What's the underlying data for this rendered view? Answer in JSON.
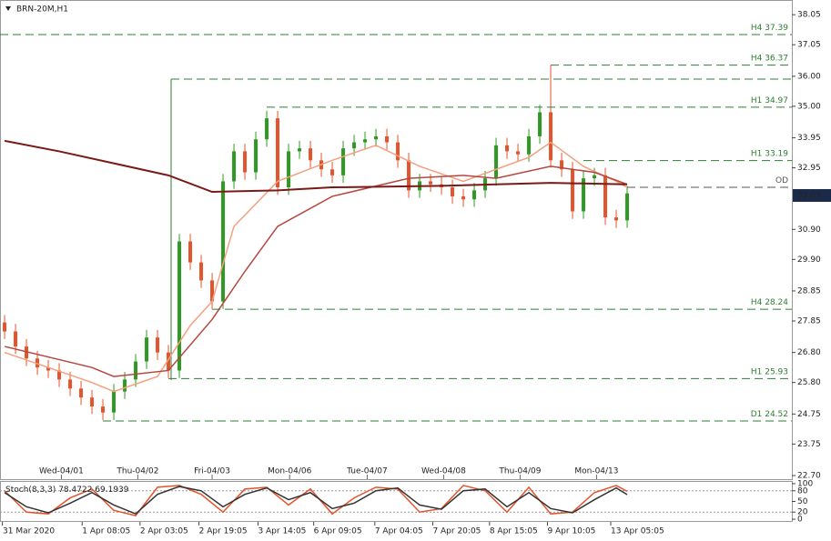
{
  "chart_data": [
    {
      "type": "candlestick",
      "title": "BRN-20M,H1",
      "open": [
        27.8,
        27.5,
        27.0,
        26.6,
        26.3,
        26.2,
        25.9,
        25.6,
        25.3,
        25.0,
        24.8,
        25.5,
        25.9,
        26.5,
        27.3,
        26.8,
        26.2,
        30.5,
        29.8,
        29.2,
        28.5,
        32.5,
        33.5,
        32.8,
        33.9,
        34.6,
        32.3,
        33.5,
        33.6,
        33.2,
        32.9,
        32.7,
        33.6,
        33.8,
        33.9,
        34.0,
        33.8,
        33.2,
        32.2,
        32.5,
        32.4,
        32.3,
        32.0,
        31.9,
        32.2,
        32.6,
        33.7,
        33.5,
        33.4,
        34.0,
        34.8,
        33.2,
        32.9,
        31.5,
        32.6,
        32.7,
        31.3,
        31.2
      ],
      "high": [
        28.05,
        27.75,
        27.25,
        26.85,
        26.55,
        26.45,
        26.15,
        25.85,
        25.55,
        25.25,
        25.75,
        26.15,
        26.75,
        27.55,
        27.55,
        27.05,
        30.75,
        30.75,
        30.05,
        29.45,
        32.75,
        33.75,
        33.75,
        34.15,
        34.85,
        34.85,
        33.75,
        33.85,
        33.85,
        33.45,
        33.15,
        33.85,
        34.05,
        34.15,
        34.25,
        34.25,
        34.05,
        33.45,
        32.75,
        32.75,
        32.65,
        32.55,
        32.25,
        32.45,
        32.85,
        33.95,
        33.95,
        33.75,
        34.25,
        35.05,
        36.37,
        33.45,
        33.15,
        32.85,
        32.95,
        32.95,
        31.55,
        32.35
      ],
      "low": [
        27.25,
        26.75,
        26.35,
        26.05,
        25.95,
        25.65,
        25.35,
        25.05,
        24.75,
        24.55,
        24.55,
        25.25,
        25.65,
        26.25,
        26.55,
        25.95,
        25.95,
        29.55,
        28.95,
        28.25,
        28.25,
        32.25,
        32.55,
        32.55,
        33.65,
        32.05,
        32.05,
        33.25,
        32.95,
        32.65,
        32.45,
        32.45,
        33.35,
        33.55,
        33.65,
        33.55,
        32.95,
        31.95,
        31.95,
        32.15,
        32.05,
        31.75,
        31.65,
        31.65,
        31.95,
        32.35,
        33.25,
        33.15,
        33.15,
        33.75,
        32.95,
        32.65,
        31.25,
        31.25,
        32.35,
        31.05,
        30.95,
        30.95
      ],
      "close": [
        27.5,
        27.0,
        26.6,
        26.3,
        26.2,
        25.9,
        25.6,
        25.3,
        25.0,
        24.8,
        25.5,
        25.9,
        26.5,
        27.3,
        26.8,
        26.2,
        30.5,
        29.8,
        29.2,
        28.5,
        32.5,
        33.5,
        32.8,
        33.9,
        34.6,
        32.3,
        33.5,
        33.6,
        33.2,
        32.9,
        32.7,
        33.6,
        33.8,
        33.9,
        34.0,
        33.8,
        33.2,
        32.2,
        32.5,
        32.4,
        32.3,
        32.0,
        31.9,
        32.2,
        32.6,
        33.7,
        33.5,
        33.4,
        34.0,
        34.8,
        33.2,
        32.9,
        31.5,
        32.6,
        32.7,
        31.3,
        31.2,
        32.1
      ],
      "up_color": "#2f9a23",
      "down_color": "#e2542c",
      "series": [
        {
          "color": "#f4a07f",
          "x": [
            0,
            8,
            10,
            14,
            17,
            19,
            21,
            25,
            30,
            34,
            38,
            42,
            45,
            48,
            50,
            53,
            56,
            57
          ],
          "values": [
            26.8,
            25.8,
            25.5,
            26.0,
            27.7,
            28.5,
            31.0,
            32.5,
            33.2,
            33.7,
            33.0,
            32.5,
            32.9,
            33.3,
            33.8,
            33.0,
            32.5,
            32.3
          ]
        },
        {
          "color": "#b5473f",
          "x": [
            0,
            8,
            10,
            15,
            19,
            22,
            25,
            30,
            37,
            42,
            45,
            50,
            54,
            57
          ],
          "values": [
            27.0,
            26.3,
            26.0,
            26.2,
            27.9,
            29.5,
            31.0,
            32.0,
            32.6,
            32.7,
            32.6,
            33.0,
            32.8,
            32.4
          ]
        },
        {
          "color": "#7a1a16",
          "x": [
            0,
            5,
            10,
            15,
            19,
            25,
            30,
            40,
            50,
            57
          ],
          "values": [
            33.85,
            33.5,
            33.1,
            32.7,
            32.15,
            32.2,
            32.3,
            32.35,
            32.45,
            32.4
          ]
        }
      ],
      "levels": [
        {
          "name": "H4",
          "value": 37.39,
          "from": -0.42
        },
        {
          "name": "H4",
          "value": 36.37,
          "from": 50
        },
        {
          "name": "H1",
          "value": 34.97,
          "from": 24
        },
        {
          "name": "H1",
          "value": 33.19,
          "from": 53
        },
        {
          "name": "OD",
          "value": 32.3,
          "from": 57
        },
        {
          "name": "H4",
          "value": 28.24,
          "from": 19
        },
        {
          "name": "H1",
          "value": 25.93,
          "from": 15
        },
        {
          "name": "D1",
          "value": 24.52,
          "from": 9
        }
      ],
      "last_price": 32.03,
      "xlim": [
        -0.42,
        72.08
      ],
      "ylim": [
        22.58,
        38.51
      ],
      "yticks": [
        38.05,
        37.05,
        {
          "value": 36,
          "label": "36.00"
        },
        {
          "value": 35,
          "label": "35.00"
        },
        33.95,
        32.95,
        {
          "value": 30.9,
          "label": "30.90"
        },
        {
          "value": 29.9,
          "label": "29.90"
        },
        28.85,
        27.85,
        {
          "value": 26.8,
          "label": "26.80"
        },
        {
          "value": 25.8,
          "label": "25.80"
        },
        24.75,
        23.75,
        {
          "value": 22.7,
          "label": "22.70"
        }
      ],
      "xticks": [
        {
          "value": 5.2,
          "label": "Wed-04/01"
        },
        {
          "value": 12.2,
          "label": "Thu-04/02"
        },
        {
          "value": 19,
          "label": "Fri-04/03"
        },
        {
          "value": 26.1,
          "label": "Mon-04/06"
        },
        {
          "value": 33.2,
          "label": "Tue-04/07"
        },
        {
          "value": 40.2,
          "label": "Wed-04/08"
        },
        {
          "value": 47.2,
          "label": "Thu-04/09"
        },
        {
          "value": 54.2,
          "label": "Mon-04/13"
        }
      ]
    },
    {
      "type": "line",
      "title": "Stoch(8,3,3)",
      "series": [
        {
          "color": "#e2542c",
          "x": [
            0,
            2,
            4,
            6,
            8,
            10,
            12,
            14,
            16,
            18,
            20,
            22,
            24,
            26,
            28,
            30,
            32,
            34,
            36,
            38,
            40,
            42,
            44,
            46,
            48,
            50,
            52,
            54,
            56,
            57
          ],
          "values": [
            80,
            20,
            15,
            60,
            85,
            25,
            10,
            90,
            95,
            70,
            20,
            85,
            90,
            40,
            85,
            15,
            60,
            90,
            85,
            20,
            30,
            95,
            80,
            20,
            90,
            15,
            20,
            75,
            95,
            78.4722
          ]
        },
        {
          "color": "#333333",
          "x": [
            0,
            2,
            4,
            6,
            8,
            10,
            12,
            14,
            16,
            18,
            20,
            22,
            24,
            26,
            28,
            30,
            32,
            34,
            36,
            38,
            40,
            42,
            44,
            46,
            48,
            50,
            52,
            54,
            56,
            57
          ],
          "values": [
            75,
            35,
            18,
            45,
            75,
            40,
            15,
            70,
            92,
            80,
            35,
            70,
            88,
            55,
            75,
            30,
            45,
            80,
            88,
            40,
            28,
            80,
            85,
            35,
            75,
            30,
            18,
            55,
            88,
            69.1939
          ]
        }
      ],
      "levels": [
        80,
        20
      ],
      "xlim": [
        -0.42,
        72.08
      ],
      "ylim": [
        -5,
        105
      ],
      "yticks": [
        100,
        80,
        50,
        20,
        0
      ],
      "xticks": [
        {
          "value": -0.2,
          "label": "31 Mar 2020"
        },
        {
          "value": 7.1,
          "label": "1 Apr 08:05"
        },
        {
          "value": 12.4,
          "label": "2 Apr 03:05"
        },
        {
          "value": 17.8,
          "label": "2 Apr 19:05"
        },
        {
          "value": 23.2,
          "label": "3 Apr 14:05"
        },
        {
          "value": 28.3,
          "label": "6 Apr 09:05"
        },
        {
          "value": 33.9,
          "label": "7 Apr 04:05"
        },
        {
          "value": 39.2,
          "label": "7 Apr 20:05"
        },
        {
          "value": 44.4,
          "label": "8 Apr 15:05"
        },
        {
          "value": 49.7,
          "label": "9 Apr 10:05"
        },
        {
          "value": 55.5,
          "label": "13 Apr 05:05"
        }
      ]
    }
  ]
}
